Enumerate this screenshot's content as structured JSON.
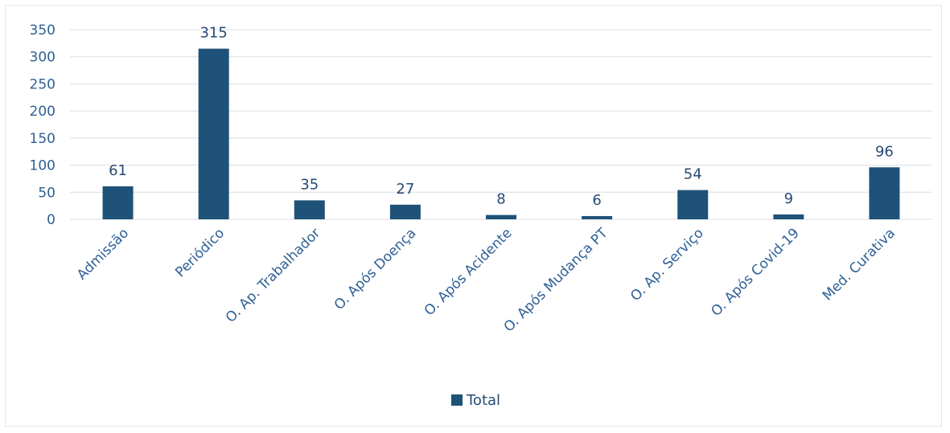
{
  "chart_data": {
    "type": "bar",
    "categories": [
      "Admissão",
      "Periódico",
      "O. Ap. Trabalhador",
      "O. Após Doença",
      "O. Após Acidente",
      "O. Após Mudança PT",
      "O. Ap. Serviço",
      "O. Após Covid-19",
      "Med. Curativa"
    ],
    "series": [
      {
        "name": "Total",
        "values": [
          61,
          315,
          35,
          27,
          8,
          6,
          54,
          9,
          96
        ],
        "color": "#1f5278"
      }
    ],
    "data_labels": [
      "61",
      "315",
      "35",
      "27",
      "8",
      "6",
      "54",
      "9",
      "96"
    ],
    "title": "",
    "xlabel": "",
    "ylabel": "",
    "ylim": [
      0,
      350
    ],
    "yticks": [
      0,
      50,
      100,
      150,
      200,
      250,
      300,
      350
    ],
    "grid": true,
    "legend_position": "bottom"
  },
  "colors": {
    "bar": "#1f5278",
    "text": "#2e5f95",
    "grid": "#d9dde3"
  }
}
